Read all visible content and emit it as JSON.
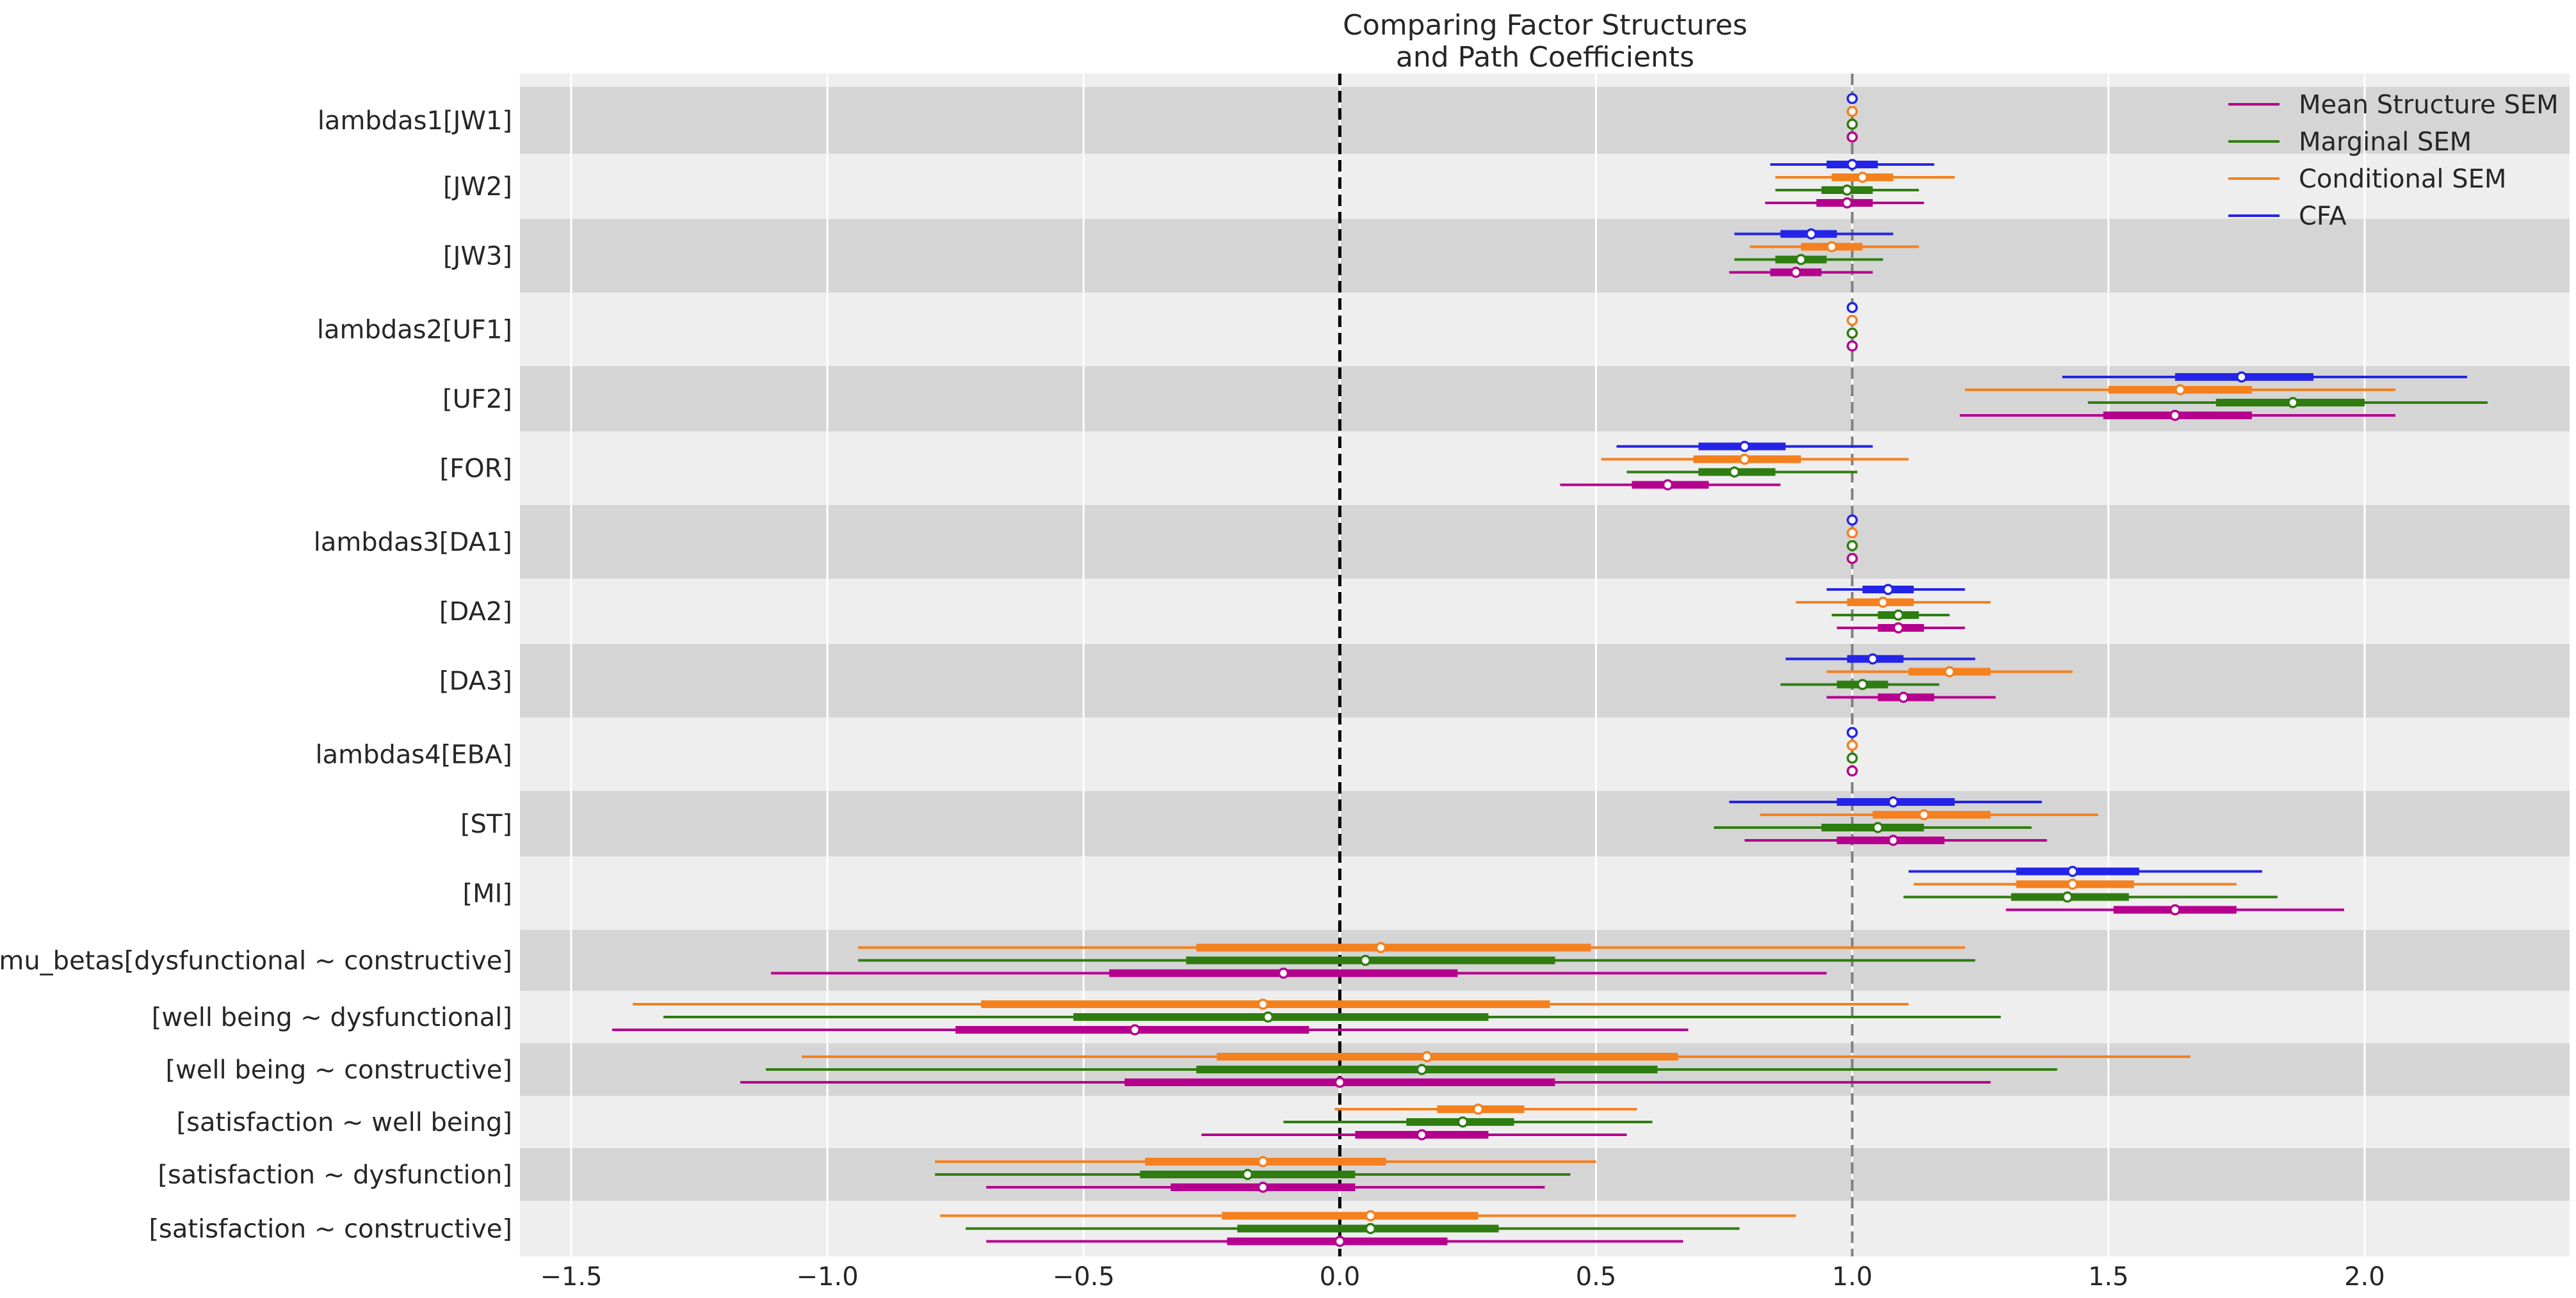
{
  "chart_data": {
    "type": "forest",
    "title_lines": [
      "Comparing Factor Structures",
      "and Path Coefficients"
    ],
    "xlim": [
      -1.6,
      2.4
    ],
    "x_ticks": [
      -1.5,
      -1.0,
      -0.5,
      0.0,
      0.5,
      1.0,
      1.5,
      2.0
    ],
    "x_tick_labels": [
      "−1.5",
      "−1.0",
      "−0.5",
      "0.0",
      "0.5",
      "1.0",
      "1.5",
      "2.0"
    ],
    "reference_lines": [
      {
        "x": 0.0,
        "style": "dashed",
        "color": "#000000"
      },
      {
        "x": 1.0,
        "style": "dashed",
        "color": "#808080"
      }
    ],
    "series": [
      {
        "name": "Mean Structure SEM",
        "color": "#b5008e"
      },
      {
        "name": "Marginal SEM",
        "color": "#2f7d10"
      },
      {
        "name": "Conditional SEM",
        "color": "#f5801e"
      },
      {
        "name": "CFA",
        "color": "#2424e8"
      }
    ],
    "legend_position": "upper right",
    "rows": [
      {
        "label": "lambdas1[JW1]",
        "estimates": {
          "CFA": [
            1,
            1,
            1,
            1,
            1
          ],
          "Conditional SEM": [
            1,
            1,
            1,
            1,
            1
          ],
          "Marginal SEM": [
            1,
            1,
            1,
            1,
            1
          ],
          "Mean Structure SEM": [
            1,
            1,
            1,
            1,
            1
          ]
        }
      },
      {
        "label": "[JW2]",
        "estimates": {
          "CFA": [
            0.84,
            0.95,
            1.0,
            1.05,
            1.16
          ],
          "Conditional SEM": [
            0.85,
            0.96,
            1.02,
            1.08,
            1.2
          ],
          "Marginal SEM": [
            0.85,
            0.94,
            0.99,
            1.04,
            1.13
          ],
          "Mean Structure SEM": [
            0.83,
            0.93,
            0.99,
            1.04,
            1.14
          ]
        }
      },
      {
        "label": "[JW3]",
        "estimates": {
          "CFA": [
            0.77,
            0.86,
            0.92,
            0.97,
            1.08
          ],
          "Conditional SEM": [
            0.8,
            0.9,
            0.96,
            1.02,
            1.13
          ],
          "Marginal SEM": [
            0.77,
            0.85,
            0.9,
            0.95,
            1.06
          ],
          "Mean Structure SEM": [
            0.76,
            0.84,
            0.89,
            0.94,
            1.04
          ]
        }
      },
      {
        "label": "lambdas2[UF1]",
        "estimates": {
          "CFA": [
            1,
            1,
            1,
            1,
            1
          ],
          "Conditional SEM": [
            1,
            1,
            1,
            1,
            1
          ],
          "Marginal SEM": [
            1,
            1,
            1,
            1,
            1
          ],
          "Mean Structure SEM": [
            1,
            1,
            1,
            1,
            1
          ]
        }
      },
      {
        "label": "[UF2]",
        "estimates": {
          "CFA": [
            1.41,
            1.63,
            1.76,
            1.9,
            2.2
          ],
          "Conditional SEM": [
            1.22,
            1.5,
            1.64,
            1.78,
            2.06
          ],
          "Marginal SEM": [
            1.46,
            1.71,
            1.86,
            2.0,
            2.24
          ],
          "Mean Structure SEM": [
            1.21,
            1.49,
            1.63,
            1.78,
            2.06
          ]
        }
      },
      {
        "label": "[FOR]",
        "estimates": {
          "CFA": [
            0.54,
            0.7,
            0.79,
            0.87,
            1.04
          ],
          "Conditional SEM": [
            0.51,
            0.69,
            0.79,
            0.9,
            1.11
          ],
          "Marginal SEM": [
            0.56,
            0.7,
            0.77,
            0.85,
            1.01
          ],
          "Mean Structure SEM": [
            0.43,
            0.57,
            0.64,
            0.72,
            0.86
          ]
        }
      },
      {
        "label": "lambdas3[DA1]",
        "estimates": {
          "CFA": [
            1,
            1,
            1,
            1,
            1
          ],
          "Conditional SEM": [
            1,
            1,
            1,
            1,
            1
          ],
          "Marginal SEM": [
            1,
            1,
            1,
            1,
            1
          ],
          "Mean Structure SEM": [
            1,
            1,
            1,
            1,
            1
          ]
        }
      },
      {
        "label": "[DA2]",
        "estimates": {
          "CFA": [
            0.95,
            1.02,
            1.07,
            1.12,
            1.22
          ],
          "Conditional SEM": [
            0.89,
            0.99,
            1.06,
            1.12,
            1.27
          ],
          "Marginal SEM": [
            0.96,
            1.05,
            1.09,
            1.13,
            1.19
          ],
          "Mean Structure SEM": [
            0.97,
            1.05,
            1.09,
            1.14,
            1.22
          ]
        }
      },
      {
        "label": "[DA3]",
        "estimates": {
          "CFA": [
            0.87,
            0.99,
            1.04,
            1.1,
            1.24
          ],
          "Conditional SEM": [
            0.95,
            1.11,
            1.19,
            1.27,
            1.43
          ],
          "Marginal SEM": [
            0.86,
            0.97,
            1.02,
            1.07,
            1.17
          ],
          "Mean Structure SEM": [
            0.95,
            1.05,
            1.1,
            1.16,
            1.28
          ]
        }
      },
      {
        "label": "lambdas4[EBA]",
        "estimates": {
          "CFA": [
            1,
            1,
            1,
            1,
            1
          ],
          "Conditional SEM": [
            1,
            1,
            1,
            1,
            1
          ],
          "Marginal SEM": [
            1,
            1,
            1,
            1,
            1
          ],
          "Mean Structure SEM": [
            1,
            1,
            1,
            1,
            1
          ]
        }
      },
      {
        "label": "[ST]",
        "estimates": {
          "CFA": [
            0.76,
            0.97,
            1.08,
            1.2,
            1.37
          ],
          "Conditional SEM": [
            0.82,
            1.04,
            1.14,
            1.27,
            1.48
          ],
          "Marginal SEM": [
            0.73,
            0.94,
            1.05,
            1.14,
            1.35
          ],
          "Mean Structure SEM": [
            0.79,
            0.97,
            1.08,
            1.18,
            1.38
          ]
        }
      },
      {
        "label": "[MI]",
        "estimates": {
          "CFA": [
            1.11,
            1.32,
            1.43,
            1.56,
            1.8
          ],
          "Conditional SEM": [
            1.12,
            1.32,
            1.43,
            1.55,
            1.75
          ],
          "Marginal SEM": [
            1.1,
            1.31,
            1.42,
            1.54,
            1.83
          ],
          "Mean Structure SEM": [
            1.3,
            1.51,
            1.63,
            1.75,
            1.96
          ]
        }
      },
      {
        "label": "mu_betas[dysfunctional ~ constructive]",
        "estimates": {
          "Conditional SEM": [
            -0.94,
            -0.28,
            0.08,
            0.49,
            1.22
          ],
          "Marginal SEM": [
            -0.94,
            -0.3,
            0.05,
            0.42,
            1.24
          ],
          "Mean Structure SEM": [
            -1.11,
            -0.45,
            -0.11,
            0.23,
            0.95
          ]
        }
      },
      {
        "label": "[well being ~ dysfunctional]",
        "estimates": {
          "Conditional SEM": [
            -1.38,
            -0.7,
            -0.15,
            0.41,
            1.11
          ],
          "Marginal SEM": [
            -1.32,
            -0.52,
            -0.14,
            0.29,
            1.29
          ],
          "Mean Structure SEM": [
            -1.42,
            -0.75,
            -0.4,
            -0.06,
            0.68
          ]
        }
      },
      {
        "label": "[well being ~ constructive]",
        "estimates": {
          "Conditional SEM": [
            -1.05,
            -0.24,
            0.17,
            0.66,
            1.66
          ],
          "Marginal SEM": [
            -1.12,
            -0.28,
            0.16,
            0.62,
            1.4
          ],
          "Mean Structure SEM": [
            -1.17,
            -0.42,
            0.0,
            0.42,
            1.27
          ]
        }
      },
      {
        "label": "[satisfaction ~ well being]",
        "estimates": {
          "Conditional SEM": [
            -0.01,
            0.19,
            0.27,
            0.36,
            0.58
          ],
          "Marginal SEM": [
            -0.11,
            0.13,
            0.24,
            0.34,
            0.61
          ],
          "Mean Structure SEM": [
            -0.27,
            0.03,
            0.16,
            0.29,
            0.56
          ]
        }
      },
      {
        "label": "[satisfaction ~ dysfunction]",
        "estimates": {
          "Conditional SEM": [
            -0.79,
            -0.38,
            -0.15,
            0.09,
            0.5
          ],
          "Marginal SEM": [
            -0.79,
            -0.39,
            -0.18,
            0.03,
            0.45
          ],
          "Mean Structure SEM": [
            -0.69,
            -0.33,
            -0.15,
            0.03,
            0.4
          ]
        }
      },
      {
        "label": "[satisfaction ~ constructive]",
        "estimates": {
          "Conditional SEM": [
            -0.78,
            -0.23,
            0.06,
            0.27,
            0.89
          ],
          "Marginal SEM": [
            -0.73,
            -0.2,
            0.06,
            0.31,
            0.78
          ],
          "Mean Structure SEM": [
            -0.69,
            -0.22,
            0.0,
            0.21,
            0.67
          ]
        }
      }
    ],
    "estimate_format": "[hdi_low, iqr_low, mean, iqr_high, hdi_high]",
    "grid": true
  }
}
